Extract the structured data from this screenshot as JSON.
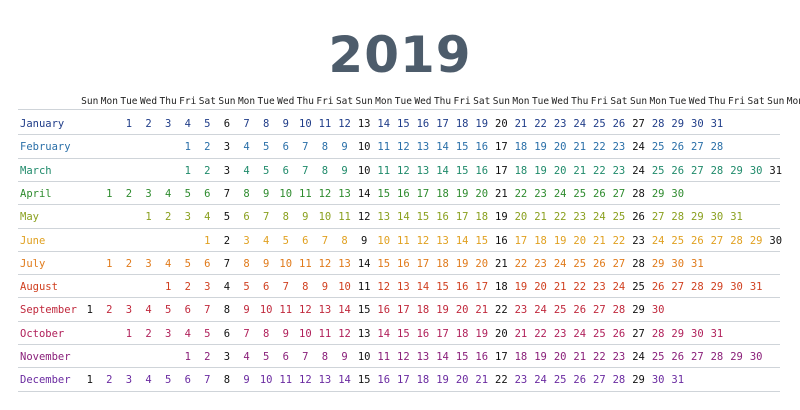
{
  "title": "2019",
  "weekdays": [
    "Sun",
    "Mon",
    "Tue",
    "Wed",
    "Thu",
    "Fri",
    "Sat"
  ],
  "sunday_color": "#111111",
  "months": [
    {
      "name": "January",
      "start": 2,
      "days": 31,
      "color": "#1f3c88"
    },
    {
      "name": "February",
      "start": 5,
      "days": 28,
      "color": "#2a6fa8"
    },
    {
      "name": "March",
      "start": 5,
      "days": 31,
      "color": "#1f8a6a"
    },
    {
      "name": "April",
      "start": 1,
      "days": 30,
      "color": "#2e8b2e"
    },
    {
      "name": "May",
      "start": 3,
      "days": 31,
      "color": "#8aa01f"
    },
    {
      "name": "June",
      "start": 6,
      "days": 30,
      "color": "#e0a020"
    },
    {
      "name": "July",
      "start": 1,
      "days": 31,
      "color": "#e07a1a"
    },
    {
      "name": "August",
      "start": 4,
      "days": 31,
      "color": "#d04020"
    },
    {
      "name": "September",
      "start": 0,
      "days": 30,
      "color": "#c0283c"
    },
    {
      "name": "October",
      "start": 2,
      "days": 31,
      "color": "#b0205a"
    },
    {
      "name": "November",
      "start": 5,
      "days": 30,
      "color": "#8a207a"
    },
    {
      "name": "December",
      "start": 0,
      "days": 31,
      "color": "#6a2aa0"
    }
  ]
}
